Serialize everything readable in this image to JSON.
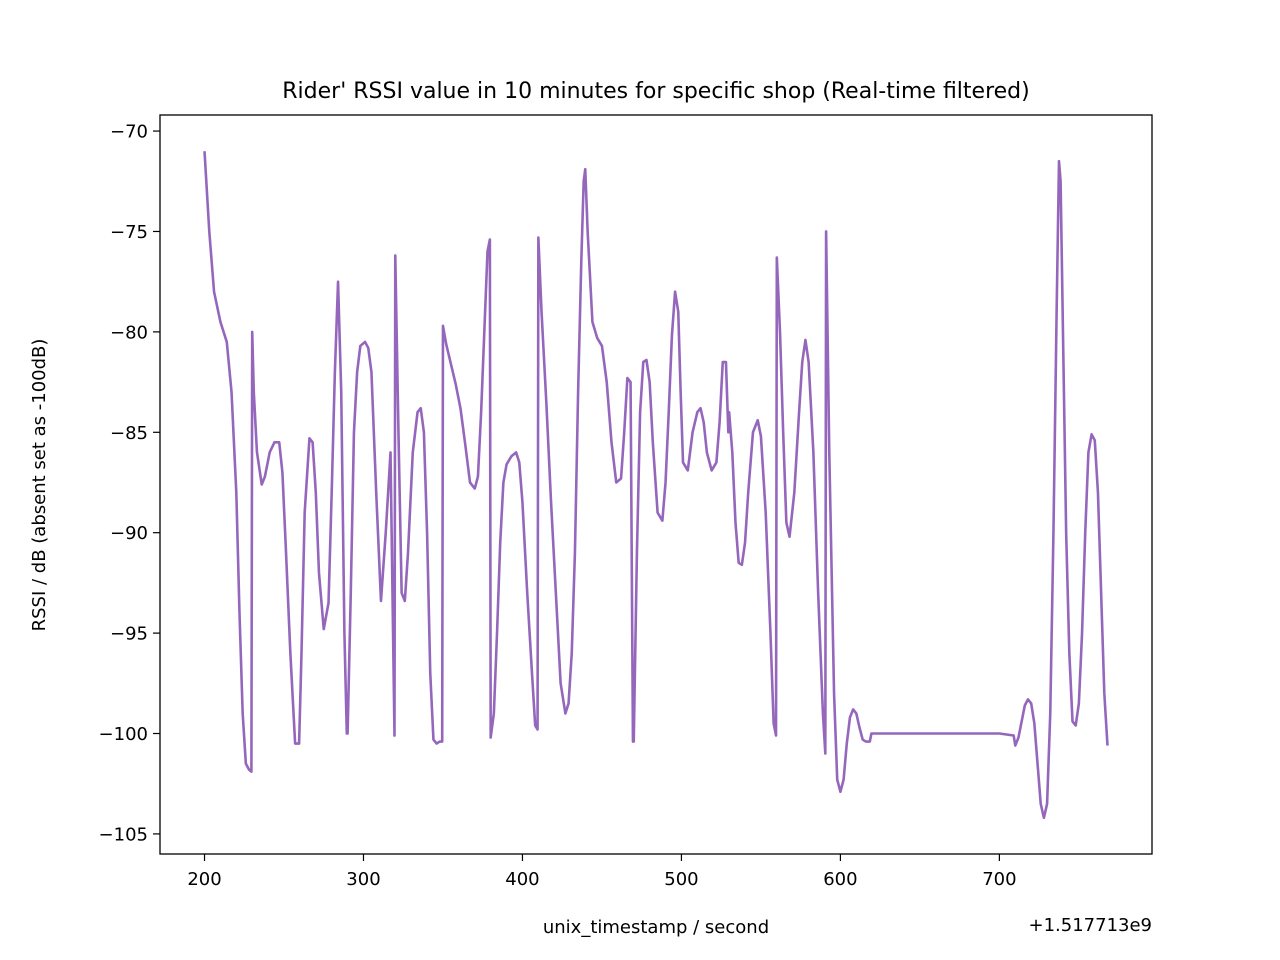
{
  "chart_data": {
    "type": "line",
    "title": "Rider' RSSI value in 10 minutes for specific shop (Real-time filtered)",
    "xlabel": "unix_timestamp / second",
    "ylabel": "RSSI / dB (absent set as -100dB)",
    "x_offset_label": "+1.517713e9",
    "xlim": [
      172,
      796
    ],
    "ylim": [
      -106,
      -69.2
    ],
    "x_ticks": [
      200,
      300,
      400,
      500,
      600,
      700
    ],
    "y_ticks": [
      -70,
      -75,
      -80,
      -85,
      -90,
      -95,
      -100,
      -105
    ],
    "x_tick_labels": [
      "200",
      "300",
      "400",
      "500",
      "600",
      "700"
    ],
    "y_tick_labels": [
      "−70",
      "−75",
      "−80",
      "−85",
      "−90",
      "−95",
      "−100",
      "−105"
    ],
    "grid": false,
    "legend": "none",
    "line_color": "#9467bd",
    "series": [
      {
        "x": [
          200,
          203,
          206,
          210,
          214,
          217,
          220,
          222,
          224,
          226,
          228,
          229.5,
          230,
          231,
          233,
          236,
          238,
          241,
          244,
          247,
          249,
          251,
          254,
          257,
          259.5,
          261,
          263,
          266,
          268,
          270,
          272,
          275,
          278,
          280,
          282,
          284,
          286,
          288,
          289.5,
          290,
          292,
          294,
          296,
          298,
          301,
          303,
          305,
          308,
          311,
          314,
          317,
          319.5,
          320,
          322,
          324,
          326,
          328,
          331,
          334,
          336,
          338,
          340,
          342,
          344,
          346,
          348,
          349.5,
          350,
          352,
          355,
          358,
          361,
          364,
          367,
          370,
          372,
          374,
          376,
          378,
          379.5,
          380,
          382,
          384,
          386,
          388,
          390,
          393,
          396,
          398,
          400,
          403,
          406,
          408,
          409.5,
          410,
          412,
          415,
          418,
          421,
          424,
          427,
          429,
          431,
          433,
          435,
          437,
          438.5,
          439.5,
          441,
          444,
          447,
          450,
          453,
          456,
          459,
          462,
          464,
          466,
          468,
          469.5,
          470,
          472,
          474,
          476,
          478,
          480,
          482,
          485,
          488,
          490,
          492,
          494,
          496,
          498,
          499.5,
          501,
          504,
          507,
          510,
          512,
          514,
          516,
          519,
          522,
          524,
          526,
          528,
          529.5,
          530,
          532,
          534,
          536,
          538,
          540,
          542,
          545,
          548,
          550,
          553,
          556,
          558,
          559.5,
          560,
          562,
          564,
          566,
          568,
          571,
          574,
          576,
          578,
          580,
          583,
          586,
          589,
          590.5,
          591,
          593,
          596,
          598,
          600,
          602,
          604,
          606,
          608,
          610,
          612,
          614,
          616,
          618.5,
          619.5,
          621,
          640,
          660,
          680,
          700,
          709,
          710,
          712,
          714,
          716,
          718,
          720,
          722,
          724,
          726,
          728,
          730,
          732,
          734,
          736,
          737.5,
          738.5,
          740,
          742,
          744,
          746,
          748,
          750,
          752,
          754,
          756,
          758,
          760,
          762,
          764,
          766,
          768
        ],
        "y": [
          -71,
          -75,
          -78,
          -79.5,
          -80.5,
          -83,
          -88,
          -94,
          -99,
          -101.5,
          -101.8,
          -101.9,
          -80,
          -83,
          -86,
          -87.6,
          -87.2,
          -86,
          -85.5,
          -85.5,
          -87,
          -90.5,
          -96,
          -100.5,
          -100.5,
          -96,
          -89,
          -85.3,
          -85.5,
          -88,
          -92,
          -94.8,
          -93.5,
          -88,
          -82,
          -77.5,
          -83,
          -95,
          -100,
          -100,
          -93,
          -85,
          -82,
          -80.7,
          -80.5,
          -80.8,
          -82,
          -88,
          -93.4,
          -90,
          -86,
          -100.1,
          -76.2,
          -85,
          -93,
          -93.4,
          -91,
          -86,
          -84,
          -83.8,
          -85,
          -90,
          -97,
          -100.3,
          -100.5,
          -100.4,
          -100.4,
          -79.7,
          -80.6,
          -81.6,
          -82.6,
          -83.8,
          -85.6,
          -87.5,
          -87.8,
          -87.2,
          -84,
          -80,
          -76,
          -75.4,
          -100.2,
          -99,
          -95,
          -90.5,
          -87.5,
          -86.6,
          -86.2,
          -86,
          -86.5,
          -88.5,
          -93,
          -97,
          -99.6,
          -99.8,
          -75.3,
          -79,
          -83.5,
          -88.5,
          -93,
          -97.5,
          -99,
          -98.5,
          -96,
          -91,
          -83,
          -76.5,
          -72.5,
          -71.9,
          -75,
          -79.5,
          -80.3,
          -80.7,
          -82.5,
          -85.5,
          -87.5,
          -87.3,
          -85,
          -82.3,
          -82.5,
          -100.4,
          -100.4,
          -91,
          -84,
          -81.5,
          -81.4,
          -82.5,
          -85.5,
          -89,
          -89.4,
          -87.5,
          -84,
          -80.2,
          -78,
          -79,
          -83,
          -86.5,
          -86.9,
          -85,
          -84,
          -83.8,
          -84.5,
          -86,
          -86.9,
          -86.5,
          -84.5,
          -81.5,
          -81.5,
          -85,
          -84,
          -86,
          -89.5,
          -91.5,
          -91.6,
          -90.5,
          -88,
          -85,
          -84.4,
          -85.2,
          -89,
          -95,
          -99.5,
          -100.1,
          -76.3,
          -80,
          -85,
          -89.5,
          -90.2,
          -88,
          -84,
          -81.5,
          -80.4,
          -81.5,
          -86,
          -93,
          -99,
          -101,
          -75,
          -86,
          -98,
          -102.3,
          -102.9,
          -102.3,
          -100.5,
          -99.2,
          -98.8,
          -99,
          -99.7,
          -100.3,
          -100.4,
          -100.4,
          -100,
          -100,
          -100,
          -100,
          -100,
          -100,
          -100.1,
          -100.6,
          -100.2,
          -99.4,
          -98.6,
          -98.3,
          -98.5,
          -99.5,
          -101.5,
          -103.5,
          -104.2,
          -103.5,
          -99,
          -90,
          -79,
          -71.5,
          -72.5,
          -80,
          -90,
          -96,
          -99.4,
          -99.6,
          -98.5,
          -95,
          -90,
          -86,
          -85.1,
          -85.4,
          -88,
          -93,
          -98,
          -100.6
        ]
      }
    ]
  }
}
